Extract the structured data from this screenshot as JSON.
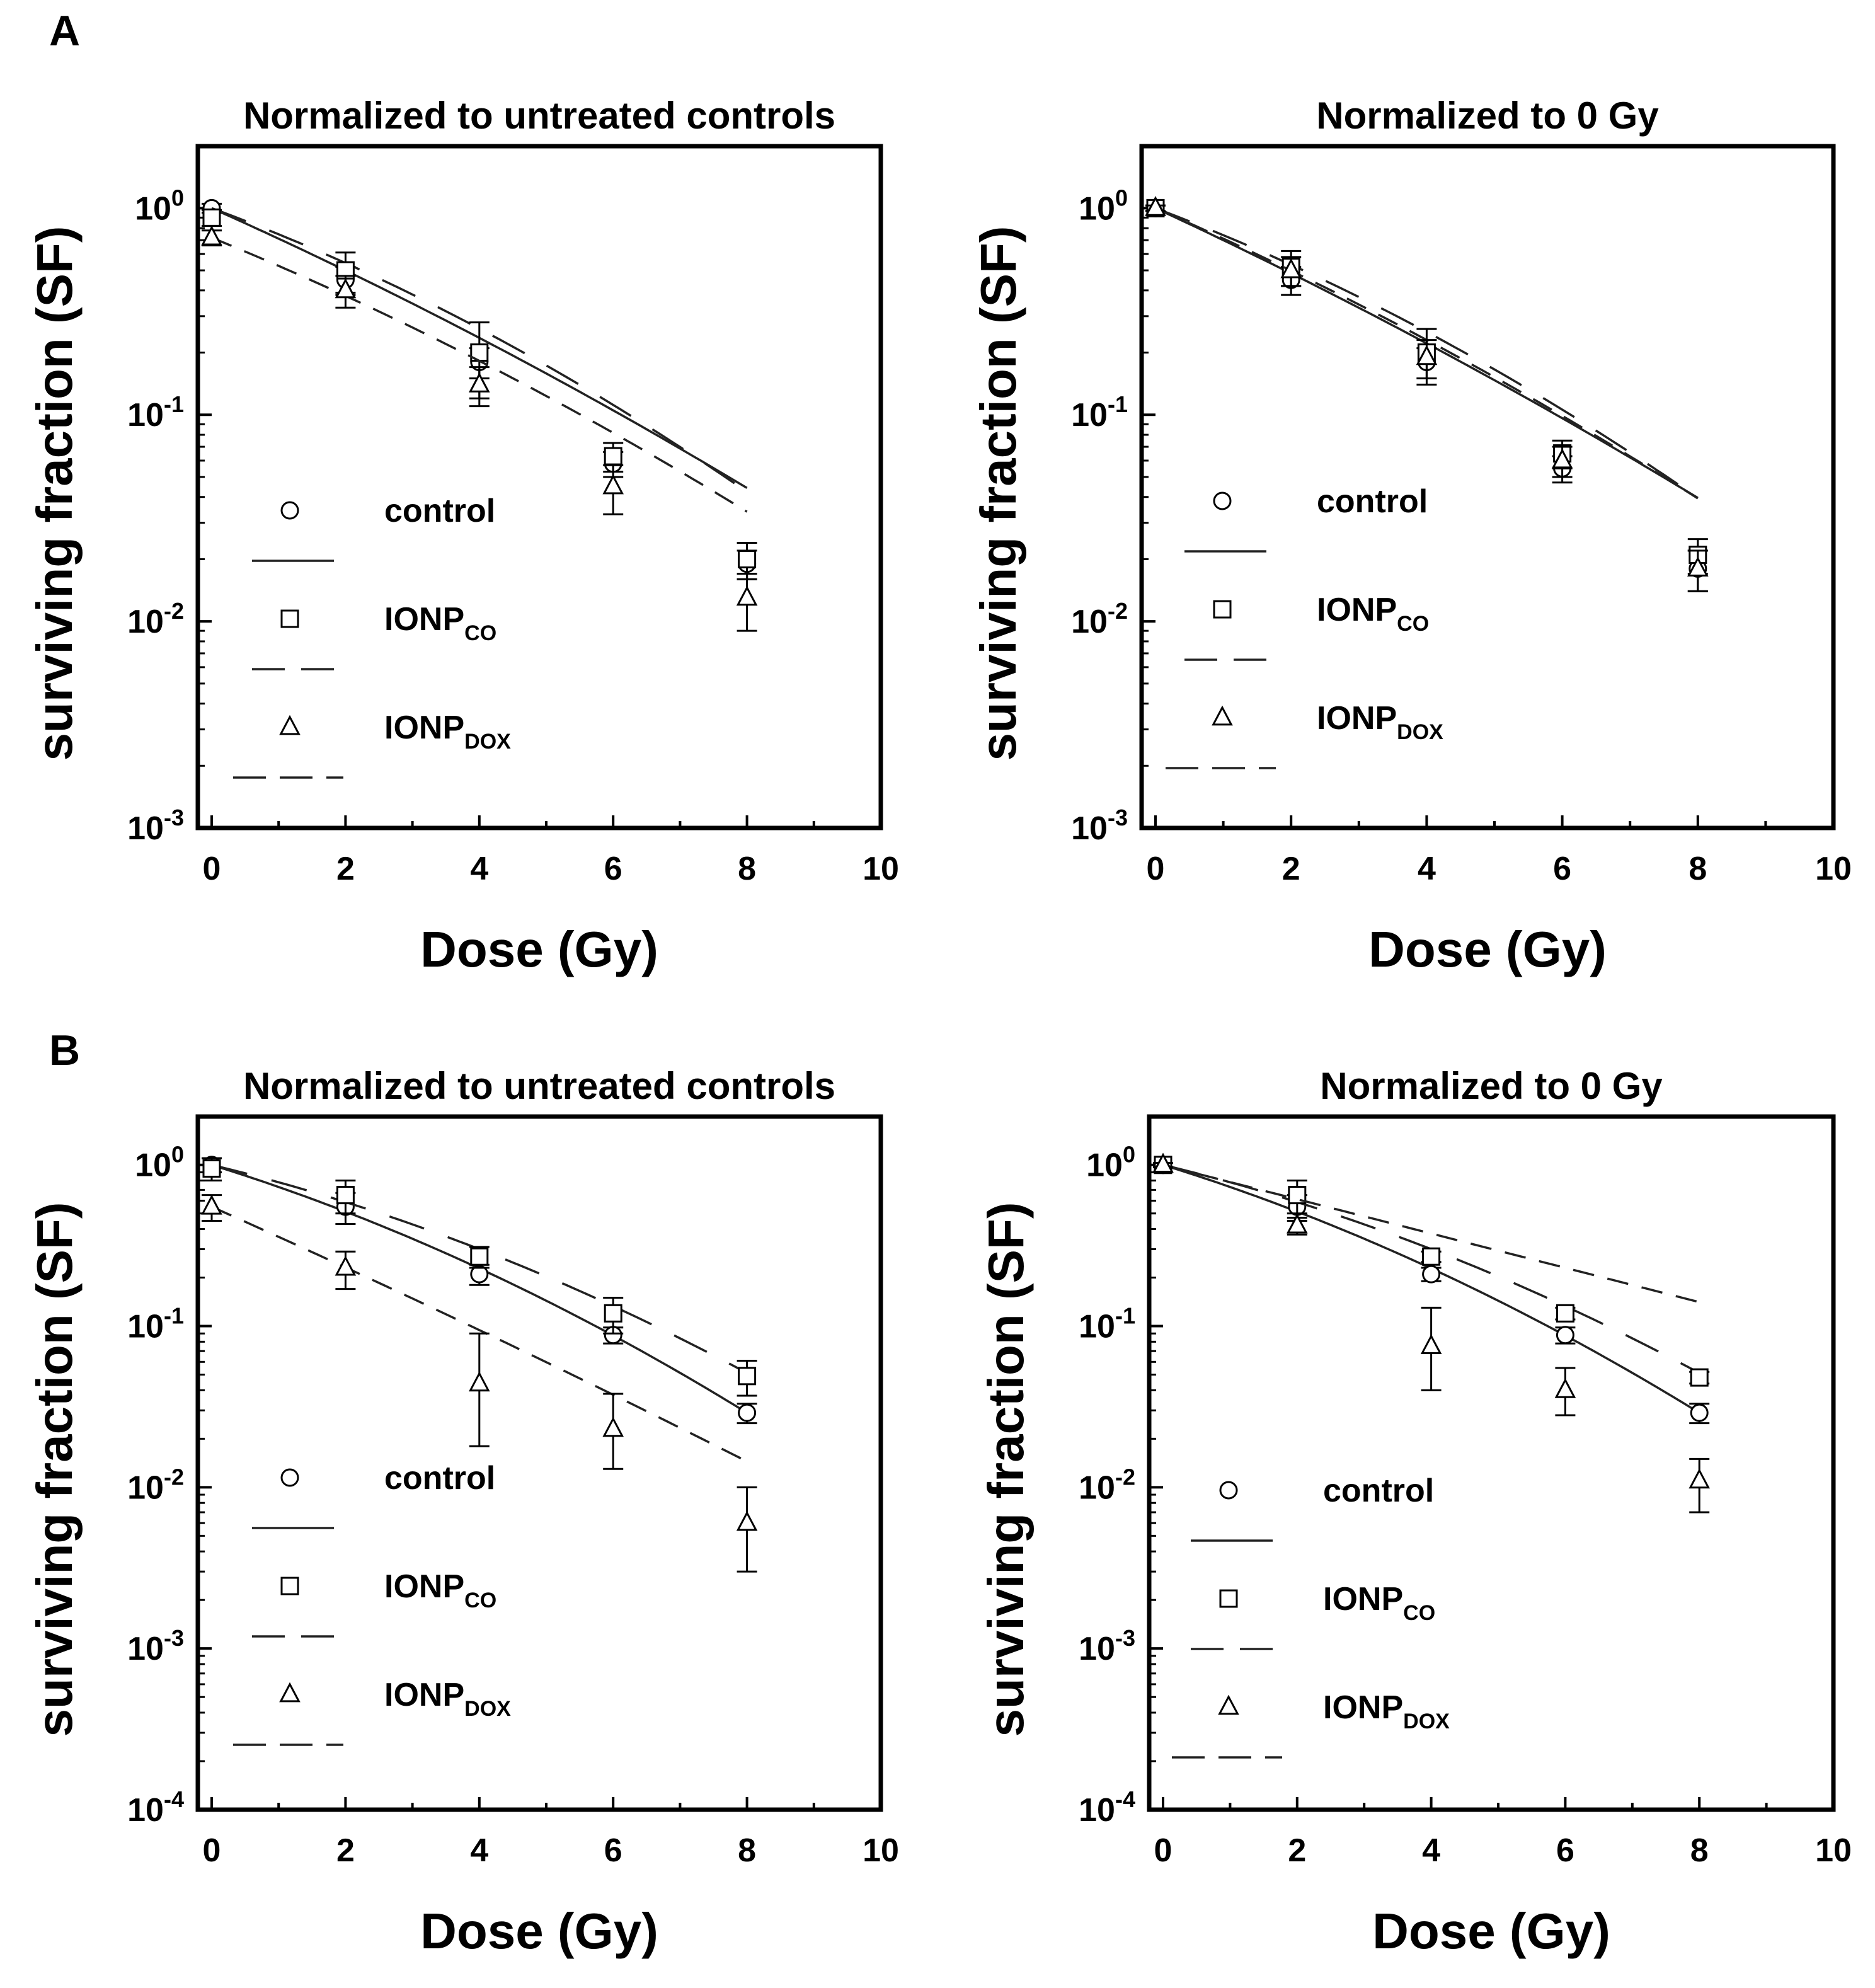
{
  "figure": {
    "panel_labels": [
      "A",
      "B"
    ]
  },
  "legend": {
    "entries": [
      {
        "key": "control",
        "label": "control",
        "sub": "",
        "marker": "circle",
        "line": "solid"
      },
      {
        "key": "co",
        "label": "IONP",
        "sub": "CO",
        "marker": "square",
        "line": "dashed"
      },
      {
        "key": "dox",
        "label": "IONP",
        "sub": "DOX",
        "marker": "triangle",
        "line": "dashed"
      }
    ]
  },
  "chart_data": [
    {
      "id": "A-left",
      "panel": "A",
      "type": "scatter",
      "title": "Normalized to untreated controls",
      "xlabel": "Dose (Gy)",
      "ylabel": "surviving fraction (SF)",
      "xlim": [
        0,
        10
      ],
      "ylim_log10": [
        -3,
        0.3
      ],
      "xticks": [
        0,
        2,
        4,
        6,
        8,
        10
      ],
      "ytick_exponents": [
        0,
        -1,
        -2,
        -3
      ],
      "x": [
        0,
        2,
        4,
        6,
        8
      ],
      "series": [
        {
          "key": "control",
          "name": "control",
          "values": [
            1.0,
            0.45,
            0.18,
            0.058,
            0.019
          ],
          "err_low": [
            0.05,
            0.07,
            0.03,
            0.008,
            0.003
          ],
          "err_high": [
            0.05,
            0.07,
            0.03,
            0.008,
            0.003
          ],
          "fit": [
            1.0,
            -0.333,
            -0.0071
          ]
        },
        {
          "key": "co",
          "name": "IONP_CO",
          "values": [
            0.9,
            0.5,
            0.2,
            0.063,
            0.02
          ],
          "err_low": [
            0.08,
            0.11,
            0.08,
            0.01,
            0.004
          ],
          "err_high": [
            0.08,
            0.11,
            0.08,
            0.01,
            0.004
          ],
          "fit": [
            1.0,
            -0.276,
            -0.0149
          ]
        },
        {
          "key": "dox",
          "name": "IONP_DOX",
          "values": [
            0.72,
            0.4,
            0.14,
            0.045,
            0.013
          ],
          "err_low": [
            0.06,
            0.07,
            0.03,
            0.012,
            0.004
          ],
          "err_high": [
            0.06,
            0.07,
            0.03,
            0.012,
            0.004
          ],
          "fit": [
            0.72,
            -0.305,
            -0.0096
          ]
        }
      ]
    },
    {
      "id": "A-right",
      "panel": "A",
      "type": "scatter",
      "title": "Normalized to 0 Gy",
      "xlabel": "Dose (Gy)",
      "ylabel": "surviving fraction (SF)",
      "xlim": [
        0,
        10
      ],
      "ylim_log10": [
        -3,
        0.3
      ],
      "xticks": [
        0,
        2,
        4,
        6,
        8,
        10
      ],
      "ytick_exponents": [
        0,
        -1,
        -2,
        -3
      ],
      "x": [
        0,
        2,
        4,
        6,
        8
      ],
      "series": [
        {
          "key": "control",
          "name": "control",
          "values": [
            1.0,
            0.45,
            0.18,
            0.055,
            0.018
          ],
          "err_low": [
            0.03,
            0.07,
            0.03,
            0.008,
            0.004
          ],
          "err_high": [
            0.03,
            0.07,
            0.03,
            0.008,
            0.004
          ],
          "fit": [
            1.0,
            -0.35,
            -0.0067
          ]
        },
        {
          "key": "co",
          "name": "IONP_CO",
          "values": [
            1.0,
            0.52,
            0.2,
            0.065,
            0.021
          ],
          "err_low": [
            0.03,
            0.1,
            0.06,
            0.01,
            0.004
          ],
          "err_high": [
            0.03,
            0.1,
            0.06,
            0.01,
            0.004
          ],
          "fit": [
            1.0,
            -0.286,
            -0.0147
          ]
        },
        {
          "key": "dox",
          "name": "IONP_DOX",
          "values": [
            1.0,
            0.5,
            0.19,
            0.06,
            0.018
          ],
          "err_low": [
            0.03,
            0.08,
            0.04,
            0.01,
            0.004
          ],
          "err_high": [
            0.03,
            0.08,
            0.04,
            0.01,
            0.004
          ],
          "fit": [
            1.0,
            -0.33,
            -0.0093
          ]
        }
      ]
    },
    {
      "id": "B-left",
      "panel": "B",
      "type": "scatter",
      "title": "Normalized to untreated controls",
      "xlabel": "Dose (Gy)",
      "ylabel": "surviving fraction (SF)",
      "xlim": [
        0,
        10
      ],
      "ylim_log10": [
        -4,
        0.3
      ],
      "xticks": [
        0,
        2,
        4,
        6,
        8,
        10
      ],
      "ytick_exponents": [
        0,
        -1,
        -2,
        -3,
        -4
      ],
      "x": [
        0,
        2,
        4,
        6,
        8
      ],
      "series": [
        {
          "key": "control",
          "name": "control",
          "values": [
            1.0,
            0.55,
            0.21,
            0.088,
            0.029
          ],
          "err_low": [
            0.1,
            0.12,
            0.03,
            0.01,
            0.004
          ],
          "err_high": [
            0.1,
            0.12,
            0.03,
            0.01,
            0.004
          ],
          "fit": [
            1.0,
            -0.297,
            -0.0182
          ]
        },
        {
          "key": "co",
          "name": "IONP_CO",
          "values": [
            0.95,
            0.65,
            0.27,
            0.12,
            0.049
          ],
          "err_low": [
            0.15,
            0.15,
            0.04,
            0.03,
            0.012
          ],
          "err_high": [
            0.15,
            0.15,
            0.04,
            0.03,
            0.012
          ],
          "fit": [
            1.0,
            -0.23,
            -0.0177
          ]
        },
        {
          "key": "dox",
          "name": "IONP_DOX",
          "values": [
            0.55,
            0.23,
            0.044,
            0.023,
            0.006
          ],
          "err_low": [
            0.1,
            0.06,
            0.026,
            0.01,
            0.003
          ],
          "err_high": [
            0.1,
            0.06,
            0.046,
            0.015,
            0.004
          ],
          "fit": [
            0.55,
            -0.426,
            -0.0036
          ]
        }
      ]
    },
    {
      "id": "B-right",
      "panel": "B",
      "type": "scatter",
      "title": "Normalized to 0 Gy",
      "xlabel": "Dose (Gy)",
      "ylabel": "surviving fraction (SF)",
      "xlim": [
        0,
        10
      ],
      "ylim_log10": [
        -4,
        0.3
      ],
      "xticks": [
        0,
        2,
        4,
        6,
        8,
        10
      ],
      "ytick_exponents": [
        0,
        -1,
        -2,
        -3,
        -4
      ],
      "x": [
        0,
        2,
        4,
        6,
        8
      ],
      "series": [
        {
          "key": "control",
          "name": "control",
          "values": [
            1.0,
            0.55,
            0.21,
            0.088,
            0.029
          ],
          "err_low": [
            0.03,
            0.1,
            0.02,
            0.01,
            0.004
          ],
          "err_high": [
            0.03,
            0.1,
            0.02,
            0.01,
            0.004
          ],
          "fit": [
            1.0,
            -0.297,
            -0.0182
          ]
        },
        {
          "key": "co",
          "name": "IONP_CO",
          "values": [
            1.0,
            0.65,
            0.27,
            0.12,
            0.048
          ],
          "err_low": [
            0.03,
            0.15,
            0.02,
            0.01,
            0.004
          ],
          "err_high": [
            0.03,
            0.15,
            0.02,
            0.01,
            0.004
          ],
          "fit": [
            1.0,
            -0.23,
            -0.0177
          ]
        },
        {
          "key": "dox",
          "name": "IONP_DOX",
          "values": [
            1.0,
            0.42,
            0.075,
            0.04,
            0.011
          ],
          "err_low": [
            0.03,
            0.05,
            0.035,
            0.012,
            0.004
          ],
          "err_high": [
            0.03,
            0.05,
            0.055,
            0.015,
            0.004
          ],
          "fit": [
            1.0,
            -0.245,
            0.0
          ]
        }
      ]
    }
  ]
}
